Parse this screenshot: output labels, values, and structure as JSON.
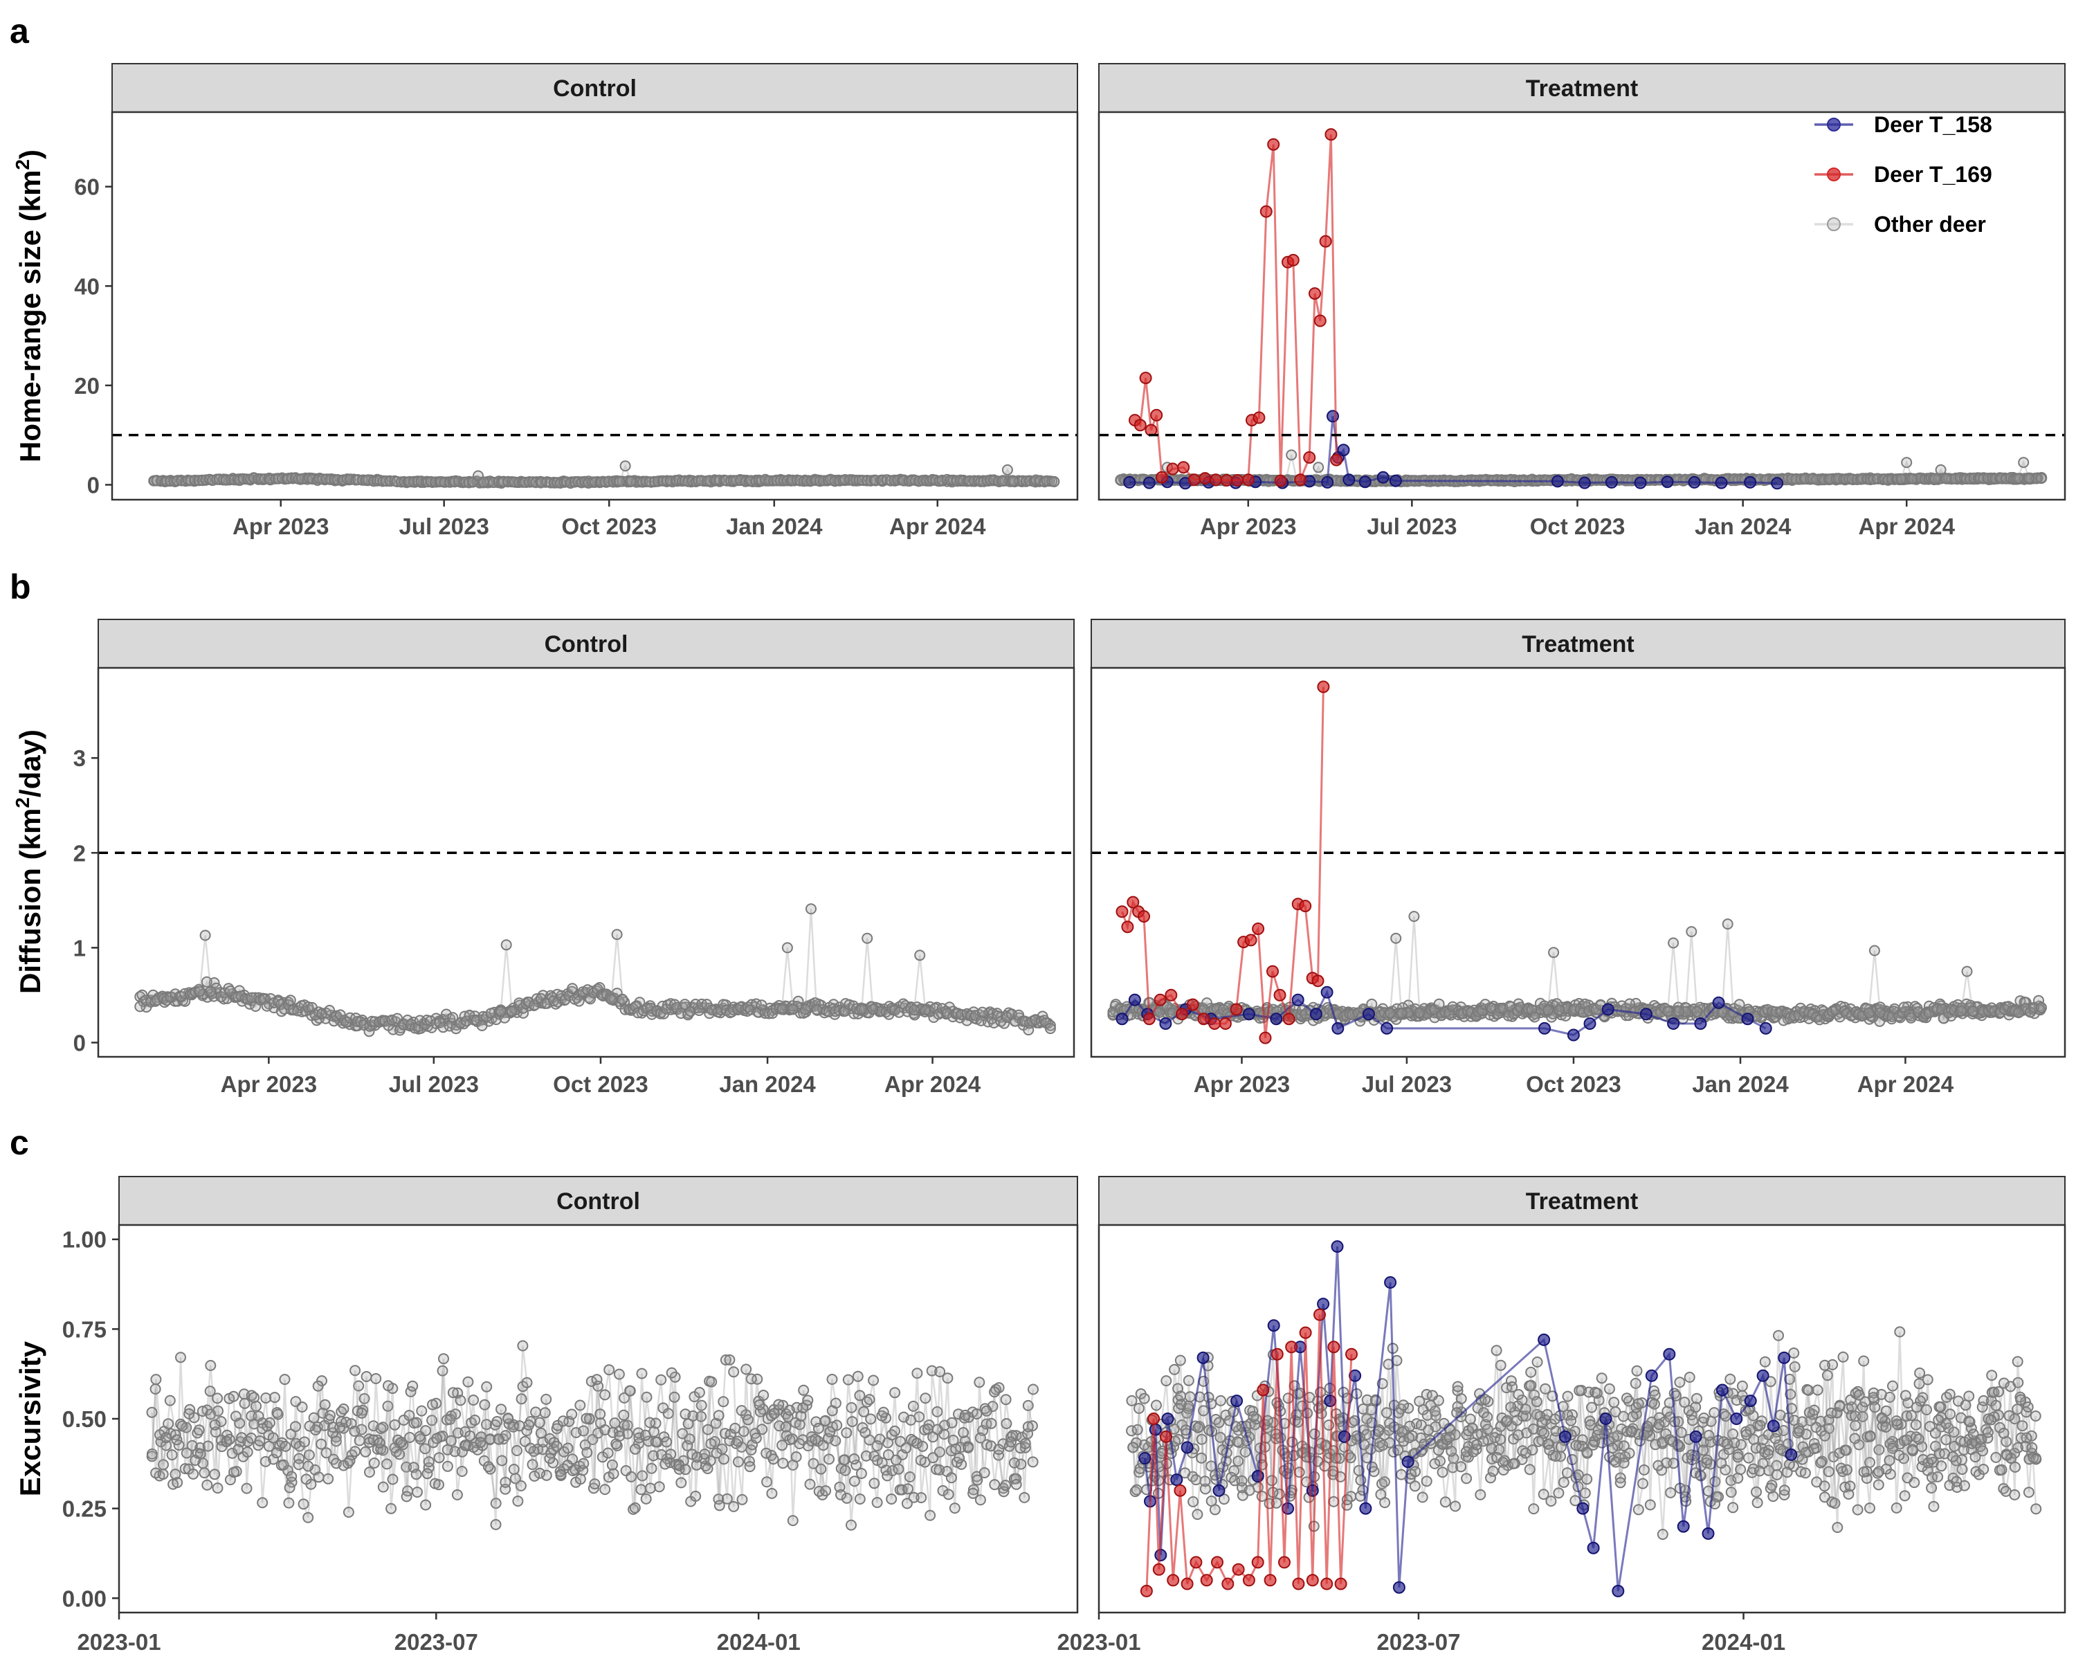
{
  "chart_data": [
    {
      "panel": "a",
      "type": "line",
      "ylabel": "Home-range size (km²)",
      "ylabel_html": [
        "Home-range size (km",
        "2",
        ")"
      ],
      "facets": [
        "Control",
        "Treatment"
      ],
      "y_ticks": [
        0,
        20,
        40,
        60
      ],
      "ylim": [
        -3,
        75
      ],
      "x_ticks": [
        "Apr 2023",
        "Jul 2023",
        "Oct 2023",
        "Jan 2024",
        "Apr 2024"
      ],
      "x_tick_dates": [
        "2023-04-01",
        "2023-07-01",
        "2023-10-01",
        "2024-01-01",
        "2024-04-01"
      ],
      "threshold": 10,
      "control": {
        "other_deer": {
          "x_range": [
            "2023-01-20",
            "2024-06-05"
          ],
          "baseline": [
            [
              0,
              0.7
            ],
            [
              0.15,
              1.3
            ],
            [
              0.3,
              0.6
            ],
            [
              0.45,
              0.5
            ],
            [
              0.6,
              0.8
            ],
            [
              0.8,
              0.9
            ],
            [
              1,
              0.7
            ]
          ],
          "spikes": [
            [
              "2023-10-10",
              3.8
            ],
            [
              "2024-05-10",
              3.0
            ],
            [
              "2023-07-20",
              1.8
            ]
          ]
        }
      },
      "treatment": {
        "deer_T_169": [
          [
            "2023-01-28",
            13.0
          ],
          [
            "2023-01-31",
            12.0
          ],
          [
            "2023-02-03",
            21.5
          ],
          [
            "2023-02-06",
            11.0
          ],
          [
            "2023-02-09",
            14.0
          ],
          [
            "2023-02-12",
            1.5
          ],
          [
            "2023-02-18",
            3.2
          ],
          [
            "2023-02-24",
            3.5
          ],
          [
            "2023-03-02",
            1.0
          ],
          [
            "2023-03-08",
            1.3
          ],
          [
            "2023-03-14",
            1.0
          ],
          [
            "2023-03-20",
            0.9
          ],
          [
            "2023-03-26",
            0.9
          ],
          [
            "2023-04-01",
            1.0
          ],
          [
            "2023-04-03",
            13.0
          ],
          [
            "2023-04-07",
            13.5
          ],
          [
            "2023-04-11",
            55.0
          ],
          [
            "2023-04-15",
            68.5
          ],
          [
            "2023-04-19",
            0.8
          ],
          [
            "2023-04-23",
            44.8
          ],
          [
            "2023-04-26",
            45.2
          ],
          [
            "2023-04-30",
            1.0
          ],
          [
            "2023-05-05",
            5.5
          ],
          [
            "2023-05-08",
            38.5
          ],
          [
            "2023-05-11",
            33.0
          ],
          [
            "2023-05-14",
            49.0
          ],
          [
            "2023-05-17",
            70.5
          ],
          [
            "2023-05-20",
            5.0
          ]
        ],
        "deer_T_158": [
          [
            "2023-01-25",
            0.5
          ],
          [
            "2023-02-05",
            0.4
          ],
          [
            "2023-02-15",
            0.6
          ],
          [
            "2023-02-25",
            0.3
          ],
          [
            "2023-03-10",
            0.5
          ],
          [
            "2023-03-25",
            0.4
          ],
          [
            "2023-04-05",
            0.6
          ],
          [
            "2023-04-20",
            0.4
          ],
          [
            "2023-05-05",
            0.7
          ],
          [
            "2023-05-15",
            0.5
          ],
          [
            "2023-05-18",
            13.8
          ],
          [
            "2023-05-21",
            5.5
          ],
          [
            "2023-05-24",
            7.0
          ],
          [
            "2023-05-27",
            1.0
          ],
          [
            "2023-06-05",
            0.6
          ],
          [
            "2023-06-15",
            1.5
          ],
          [
            "2023-06-22",
            0.8
          ],
          [
            "2023-09-20",
            0.7
          ],
          [
            "2023-10-05",
            0.4
          ],
          [
            "2023-10-20",
            0.5
          ],
          [
            "2023-11-05",
            0.4
          ],
          [
            "2023-11-20",
            0.6
          ],
          [
            "2023-12-05",
            0.5
          ],
          [
            "2023-12-20",
            0.4
          ],
          [
            "2024-01-05",
            0.5
          ],
          [
            "2024-01-20",
            0.3
          ]
        ],
        "other_deer": {
          "x_range": [
            "2023-01-20",
            "2024-06-15"
          ],
          "baseline": [
            [
              0,
              1.0
            ],
            [
              0.3,
              0.8
            ],
            [
              0.6,
              1.0
            ],
            [
              1,
              1.3
            ]
          ],
          "spikes": [
            [
              "2023-02-15",
              3.5
            ],
            [
              "2023-04-25",
              6.0
            ],
            [
              "2023-05-10",
              3.5
            ],
            [
              "2024-04-01",
              4.5
            ],
            [
              "2024-06-05",
              4.5
            ],
            [
              "2024-04-20",
              3.0
            ]
          ]
        }
      }
    },
    {
      "panel": "b",
      "type": "line",
      "ylabel": "Diffusion (km²/day)",
      "ylabel_html": [
        "Diffusion (km",
        "2",
        "/day)"
      ],
      "facets": [
        "Control",
        "Treatment"
      ],
      "y_ticks": [
        0,
        1,
        2,
        3
      ],
      "ylim": [
        -0.15,
        3.95
      ],
      "x_ticks": [
        "Apr 2023",
        "Jul 2023",
        "Oct 2023",
        "Jan 2024",
        "Apr 2024"
      ],
      "x_tick_dates": [
        "2023-04-01",
        "2023-07-01",
        "2023-10-01",
        "2024-01-01",
        "2024-04-01"
      ],
      "threshold": 2,
      "control": {
        "other_deer": {
          "x_range": [
            "2023-01-20",
            "2024-06-05"
          ],
          "baseline": [
            [
              0,
              0.45
            ],
            [
              0.08,
              0.55
            ],
            [
              0.15,
              0.4
            ],
            [
              0.25,
              0.2
            ],
            [
              0.35,
              0.2
            ],
            [
              0.45,
              0.45
            ],
            [
              0.5,
              0.55
            ],
            [
              0.55,
              0.35
            ],
            [
              0.7,
              0.35
            ],
            [
              0.85,
              0.35
            ],
            [
              0.95,
              0.25
            ],
            [
              1,
              0.2
            ]
          ],
          "spikes": [
            [
              "2023-02-25",
              1.13
            ],
            [
              "2023-10-10",
              1.14
            ],
            [
              "2024-01-25",
              1.41
            ],
            [
              "2024-02-25",
              1.1
            ],
            [
              "2023-08-10",
              1.03
            ],
            [
              "2024-03-25",
              0.92
            ],
            [
              "2024-01-12",
              1.0
            ]
          ]
        }
      },
      "treatment": {
        "deer_T_169": [
          [
            "2023-01-25",
            1.38
          ],
          [
            "2023-01-28",
            1.22
          ],
          [
            "2023-01-31",
            1.48
          ],
          [
            "2023-02-03",
            1.38
          ],
          [
            "2023-02-06",
            1.33
          ],
          [
            "2023-02-09",
            0.25
          ],
          [
            "2023-02-15",
            0.45
          ],
          [
            "2023-02-21",
            0.5
          ],
          [
            "2023-02-27",
            0.3
          ],
          [
            "2023-03-05",
            0.4
          ],
          [
            "2023-03-11",
            0.25
          ],
          [
            "2023-03-17",
            0.2
          ],
          [
            "2023-03-23",
            0.2
          ],
          [
            "2023-03-29",
            0.35
          ],
          [
            "2023-04-02",
            1.06
          ],
          [
            "2023-04-06",
            1.08
          ],
          [
            "2023-04-10",
            1.2
          ],
          [
            "2023-04-14",
            0.05
          ],
          [
            "2023-04-18",
            0.75
          ],
          [
            "2023-04-22",
            0.5
          ],
          [
            "2023-04-27",
            0.25
          ],
          [
            "2023-05-02",
            1.46
          ],
          [
            "2023-05-06",
            1.44
          ],
          [
            "2023-05-10",
            0.68
          ],
          [
            "2023-05-13",
            0.65
          ],
          [
            "2023-05-16",
            3.75
          ]
        ],
        "deer_T_158": [
          [
            "2023-01-25",
            0.25
          ],
          [
            "2023-02-01",
            0.45
          ],
          [
            "2023-02-08",
            0.3
          ],
          [
            "2023-02-18",
            0.2
          ],
          [
            "2023-03-01",
            0.35
          ],
          [
            "2023-03-15",
            0.25
          ],
          [
            "2023-04-05",
            0.3
          ],
          [
            "2023-04-20",
            0.25
          ],
          [
            "2023-05-02",
            0.45
          ],
          [
            "2023-05-12",
            0.3
          ],
          [
            "2023-05-18",
            0.53
          ],
          [
            "2023-05-24",
            0.15
          ],
          [
            "2023-06-10",
            0.3
          ],
          [
            "2023-06-20",
            0.15
          ],
          [
            "2023-09-15",
            0.15
          ],
          [
            "2023-10-01",
            0.08
          ],
          [
            "2023-10-10",
            0.2
          ],
          [
            "2023-10-20",
            0.35
          ],
          [
            "2023-11-10",
            0.3
          ],
          [
            "2023-11-25",
            0.2
          ],
          [
            "2023-12-10",
            0.2
          ],
          [
            "2023-12-20",
            0.42
          ],
          [
            "2024-01-05",
            0.25
          ],
          [
            "2024-01-15",
            0.15
          ]
        ],
        "other_deer": {
          "x_range": [
            "2023-01-20",
            "2024-06-15"
          ],
          "baseline": [
            [
              0,
              0.35
            ],
            [
              0.25,
              0.3
            ],
            [
              0.5,
              0.35
            ],
            [
              0.75,
              0.3
            ],
            [
              1,
              0.35
            ]
          ],
          "spikes": [
            [
              "2023-07-05",
              1.33
            ],
            [
              "2023-06-25",
              1.1
            ],
            [
              "2023-12-25",
              1.25
            ],
            [
              "2023-12-05",
              1.17
            ],
            [
              "2023-11-25",
              1.05
            ],
            [
              "2024-03-15",
              0.97
            ],
            [
              "2024-05-05",
              0.75
            ],
            [
              "2023-09-20",
              0.95
            ]
          ]
        }
      }
    },
    {
      "panel": "c",
      "type": "line",
      "ylabel": "Excursivity",
      "facets": [
        "Control",
        "Treatment"
      ],
      "y_ticks": [
        "0.00",
        "0.25",
        "0.50",
        "0.75",
        "1.00"
      ],
      "ylim": [
        -0.04,
        1.04
      ],
      "x_ticks": [
        "2023-01",
        "2023-07",
        "2024-01"
      ],
      "x_tick_dates": [
        "2023-01-01",
        "2023-07-01",
        "2024-01-01"
      ],
      "control": {
        "other_deer": {
          "x_range": [
            "2023-01-20",
            "2024-06-05"
          ],
          "mean": 0.45,
          "spread": 0.45
        }
      },
      "treatment": {
        "deer_T_169": [
          [
            "2023-01-28",
            0.02
          ],
          [
            "2023-02-01",
            0.5
          ],
          [
            "2023-02-04",
            0.08
          ],
          [
            "2023-02-08",
            0.45
          ],
          [
            "2023-02-12",
            0.05
          ],
          [
            "2023-02-16",
            0.3
          ],
          [
            "2023-02-20",
            0.04
          ],
          [
            "2023-02-25",
            0.1
          ],
          [
            "2023-03-03",
            0.05
          ],
          [
            "2023-03-09",
            0.1
          ],
          [
            "2023-03-15",
            0.04
          ],
          [
            "2023-03-21",
            0.08
          ],
          [
            "2023-03-27",
            0.05
          ],
          [
            "2023-04-01",
            0.1
          ],
          [
            "2023-04-04",
            0.58
          ],
          [
            "2023-04-08",
            0.05
          ],
          [
            "2023-04-12",
            0.68
          ],
          [
            "2023-04-16",
            0.1
          ],
          [
            "2023-04-20",
            0.7
          ],
          [
            "2023-04-24",
            0.04
          ],
          [
            "2023-04-28",
            0.74
          ],
          [
            "2023-05-02",
            0.05
          ],
          [
            "2023-05-06",
            0.79
          ],
          [
            "2023-05-10",
            0.04
          ],
          [
            "2023-05-14",
            0.7
          ],
          [
            "2023-05-18",
            0.04
          ],
          [
            "2023-05-24",
            0.68
          ]
        ],
        "deer_T_158": [
          [
            "2023-01-27",
            0.39
          ],
          [
            "2023-01-30",
            0.27
          ],
          [
            "2023-02-02",
            0.47
          ],
          [
            "2023-02-05",
            0.12
          ],
          [
            "2023-02-09",
            0.5
          ],
          [
            "2023-02-14",
            0.33
          ],
          [
            "2023-02-20",
            0.42
          ],
          [
            "2023-03-01",
            0.67
          ],
          [
            "2023-03-10",
            0.3
          ],
          [
            "2023-03-20",
            0.55
          ],
          [
            "2023-04-01",
            0.34
          ],
          [
            "2023-04-10",
            0.76
          ],
          [
            "2023-04-18",
            0.25
          ],
          [
            "2023-04-25",
            0.7
          ],
          [
            "2023-05-02",
            0.3
          ],
          [
            "2023-05-08",
            0.82
          ],
          [
            "2023-05-12",
            0.55
          ],
          [
            "2023-05-16",
            0.98
          ],
          [
            "2023-05-20",
            0.45
          ],
          [
            "2023-05-26",
            0.62
          ],
          [
            "2023-06-01",
            0.25
          ],
          [
            "2023-06-15",
            0.88
          ],
          [
            "2023-06-20",
            0.03
          ],
          [
            "2023-06-25",
            0.38
          ],
          [
            "2023-09-10",
            0.72
          ],
          [
            "2023-09-22",
            0.45
          ],
          [
            "2023-10-02",
            0.25
          ],
          [
            "2023-10-08",
            0.14
          ],
          [
            "2023-10-15",
            0.5
          ],
          [
            "2023-10-22",
            0.02
          ],
          [
            "2023-11-10",
            0.62
          ],
          [
            "2023-11-20",
            0.68
          ],
          [
            "2023-11-28",
            0.2
          ],
          [
            "2023-12-05",
            0.45
          ],
          [
            "2023-12-12",
            0.18
          ],
          [
            "2023-12-20",
            0.58
          ],
          [
            "2023-12-28",
            0.5
          ],
          [
            "2024-01-05",
            0.55
          ],
          [
            "2024-01-12",
            0.62
          ],
          [
            "2024-01-18",
            0.48
          ],
          [
            "2024-01-24",
            0.67
          ],
          [
            "2024-01-28",
            0.4
          ]
        ],
        "other_deer": {
          "x_range": [
            "2023-01-20",
            "2024-06-15"
          ],
          "mean": 0.45,
          "spread": 0.5
        }
      }
    }
  ],
  "legend": {
    "items": [
      {
        "label": "Deer T_158",
        "color": "#2b2b9a"
      },
      {
        "label": "Deer T_169",
        "color": "#d62728"
      },
      {
        "label": "Other deer",
        "color": "#bdbdbd"
      }
    ],
    "placement": "top-right of panel a Treatment"
  },
  "colors": {
    "deer_T_158": "#1f1f8f",
    "deer_T_169": "#d62020",
    "other_deer": "#666666",
    "strip_fill": "#d9d9d9",
    "threshold": "#000000"
  }
}
